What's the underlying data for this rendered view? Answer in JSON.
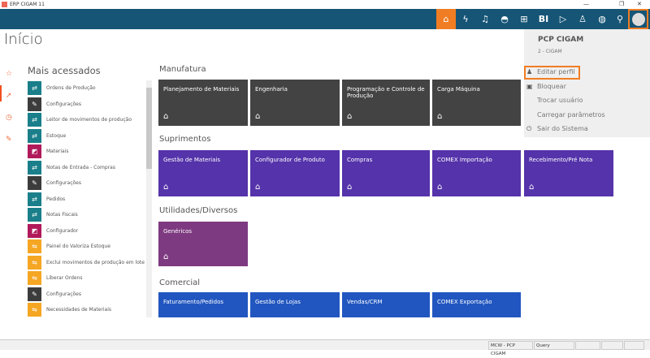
{
  "window": {
    "title": "ERP CIGAM 11",
    "minimize": "—",
    "maximize": "❐",
    "close": "✕"
  },
  "topbar": {
    "icons": [
      "home-icon",
      "lightning-icon",
      "bell-icon",
      "graduation-icon",
      "apps-grid-icon",
      "bi-icon",
      "play-chat-icon",
      "support-icon",
      "globe-icon",
      "search-icon",
      "user-avatar-icon"
    ],
    "bi_label": "BI",
    "accent": "#f07d23",
    "bar_color": "#165576"
  },
  "page": {
    "title": "Início"
  },
  "rail": [
    "star-icon",
    "cursor-icon",
    "clock-icon",
    "pin-icon"
  ],
  "most_accessed": {
    "title": "Mais acessados",
    "items": [
      {
        "label": "Ordens de Produção",
        "color": "#1a7f8a",
        "icon": "arrows-icon"
      },
      {
        "label": "Configurações",
        "color": "#3c3c3c",
        "icon": "wrench-icon"
      },
      {
        "label": "Leitor de movimentos de produção",
        "color": "#1a7f8a",
        "icon": "arrows-icon"
      },
      {
        "label": "Estoque",
        "color": "#1a7f8a",
        "icon": "arrows-icon"
      },
      {
        "label": "Materiais",
        "color": "#b0195a",
        "icon": "edit-icon"
      },
      {
        "label": "Notas de Entrada - Compras",
        "color": "#1a7f8a",
        "icon": "arrows-icon"
      },
      {
        "label": "Configurações",
        "color": "#3c3c3c",
        "icon": "wrench-icon"
      },
      {
        "label": "Pedidos",
        "color": "#1a7f8a",
        "icon": "arrows-icon"
      },
      {
        "label": "Notas Fiscais",
        "color": "#1a7f8a",
        "icon": "arrows-icon"
      },
      {
        "label": "Configurador",
        "color": "#b0195a",
        "icon": "edit-icon"
      },
      {
        "label": "Painel do Valoriza Estoque",
        "color": "#f5a623",
        "icon": "swap-icon"
      },
      {
        "label": "Exclui movimentos de produção em lote",
        "color": "#f5a623",
        "icon": "swap-icon"
      },
      {
        "label": "Liberar Ordens",
        "color": "#f5a623",
        "icon": "swap-icon"
      },
      {
        "label": "Configurações",
        "color": "#3c3c3c",
        "icon": "wrench-icon"
      },
      {
        "label": "Necessidades de Materiais",
        "color": "#f5a623",
        "icon": "swap-icon"
      }
    ]
  },
  "sections": [
    {
      "title": "Manufatura",
      "color": "#434343",
      "tiles": [
        "Planejamento de Materiais",
        "Engenharia",
        "Programação e Controle de Produção",
        "Carga Máquina"
      ]
    },
    {
      "title": "Suprimentos",
      "color": "#5533aa",
      "tiles": [
        "Gestão de Materiais",
        "Configurador de Produto",
        "Compras",
        "COMEX Importação",
        "Recebimento/Pré Nota"
      ]
    },
    {
      "title": "Utilidades/Diversos",
      "color": "#7e3a80",
      "tiles": [
        "Genéricos"
      ]
    },
    {
      "title": "Comercial",
      "color": "#2156c0",
      "tiles": [
        "Faturamento/Pedidos",
        "Gestão de Lojas",
        "Vendas/CRM",
        "COMEX Exportação"
      ]
    }
  ],
  "user_menu": {
    "name": "PCP CIGAM",
    "company": "2 - CIGAM",
    "items": [
      {
        "label": "Editar perfil",
        "icon": "user-icon"
      },
      {
        "label": "Bloquear",
        "icon": "lock-icon"
      },
      {
        "label": "Trocar usuário",
        "icon": ""
      },
      {
        "label": "Carregar parâmetros",
        "icon": ""
      },
      {
        "label": "Sair do Sistema",
        "icon": "power-icon"
      }
    ]
  },
  "status": {
    "cells": [
      "MCW - PCP CIGAM",
      "Query",
      "",
      "",
      ""
    ]
  }
}
